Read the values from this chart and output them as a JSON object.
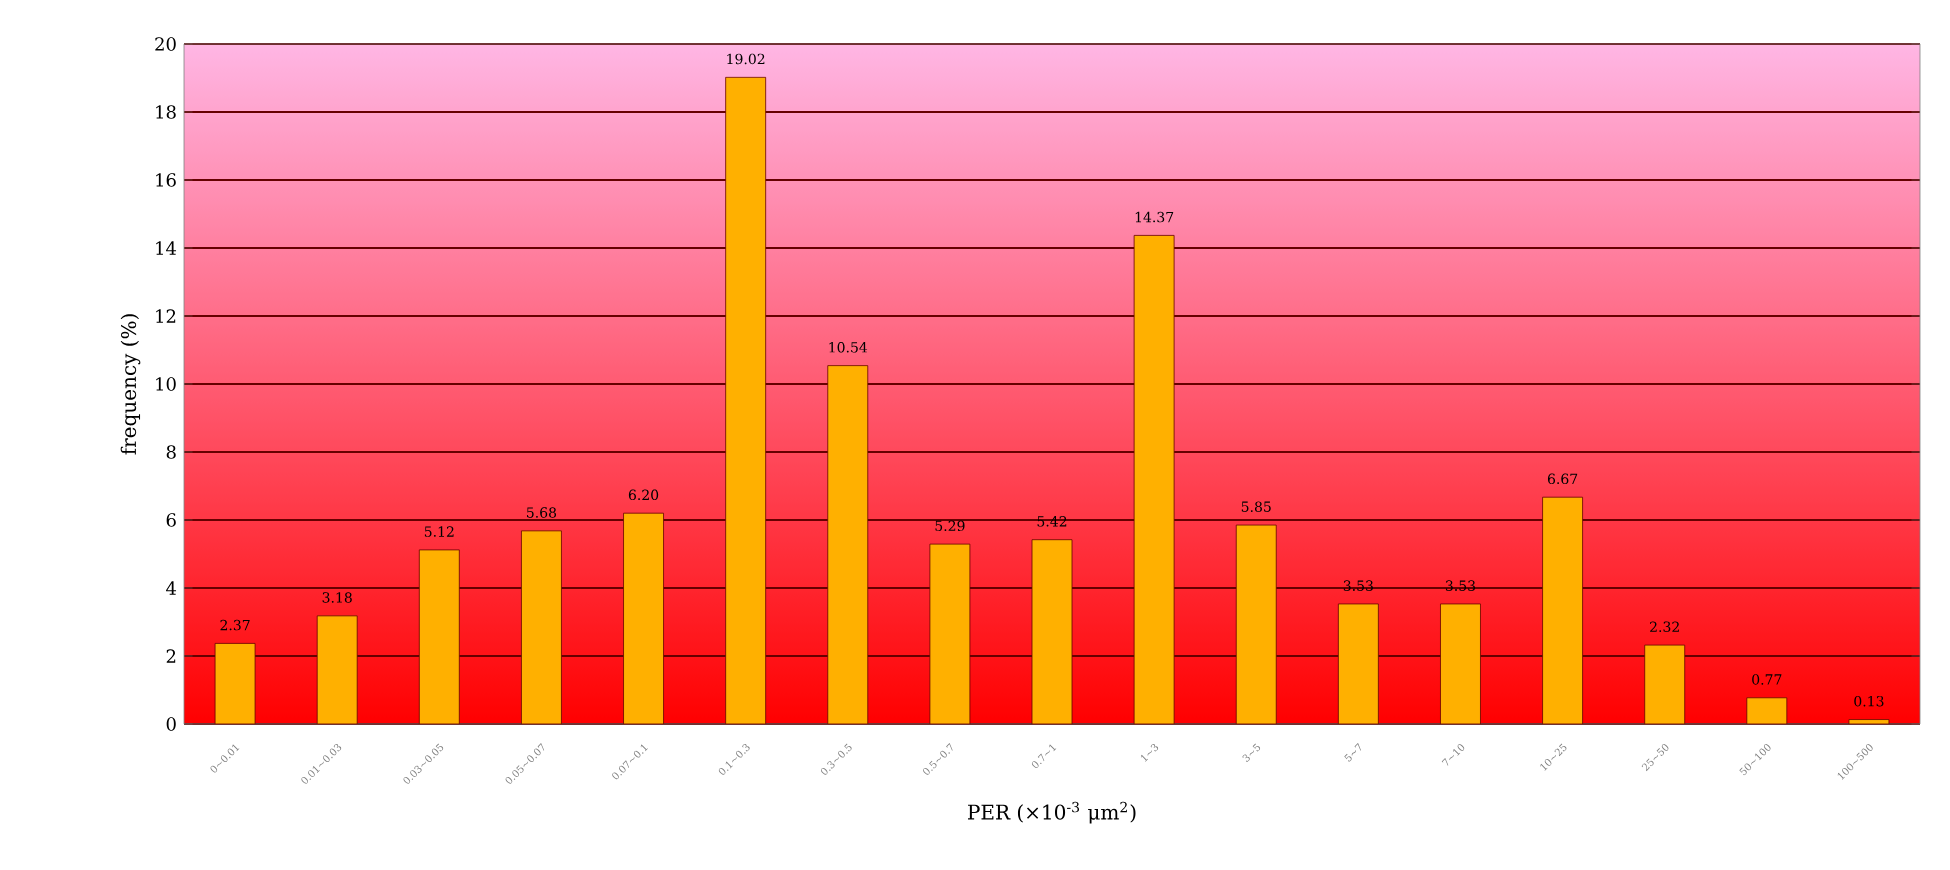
{
  "chart_data": {
    "type": "bar",
    "xlabel": "PER (×10$^{-3}$ μm$^{2}$)",
    "ylabel": "frequency (%)",
    "categories": [
      "0~0.01",
      "0.01~0.03",
      "0.03~0.05",
      "0.05~0.07",
      "0.07~0.1",
      "0.1~0.3",
      "0.3~0.5",
      "0.5~0.7",
      "0.7~1",
      "1~3",
      "3~5",
      "5~7",
      "7~10",
      "10~25",
      "25~50",
      "50~100",
      "100~500"
    ],
    "values": [
      2.37,
      3.18,
      5.12,
      5.68,
      6.2,
      19.02,
      10.54,
      5.29,
      5.42,
      14.37,
      5.85,
      3.53,
      3.53,
      6.67,
      2.32,
      0.77,
      0.13
    ],
    "value_labels": [
      "2.37",
      "3.18",
      "5.12",
      "5.68",
      "6.20",
      "19.02",
      "10.54",
      "5.29",
      "5.42",
      "14.37",
      "5.85",
      "3.53",
      "3.53",
      "6.67",
      "2.32",
      "0.77",
      "0.13"
    ],
    "color": "#ffb000",
    "ylim": [
      0,
      20
    ],
    "yticks": [
      0,
      2,
      4,
      6,
      8,
      10,
      12,
      14,
      16,
      18,
      20
    ],
    "grid": "y"
  }
}
